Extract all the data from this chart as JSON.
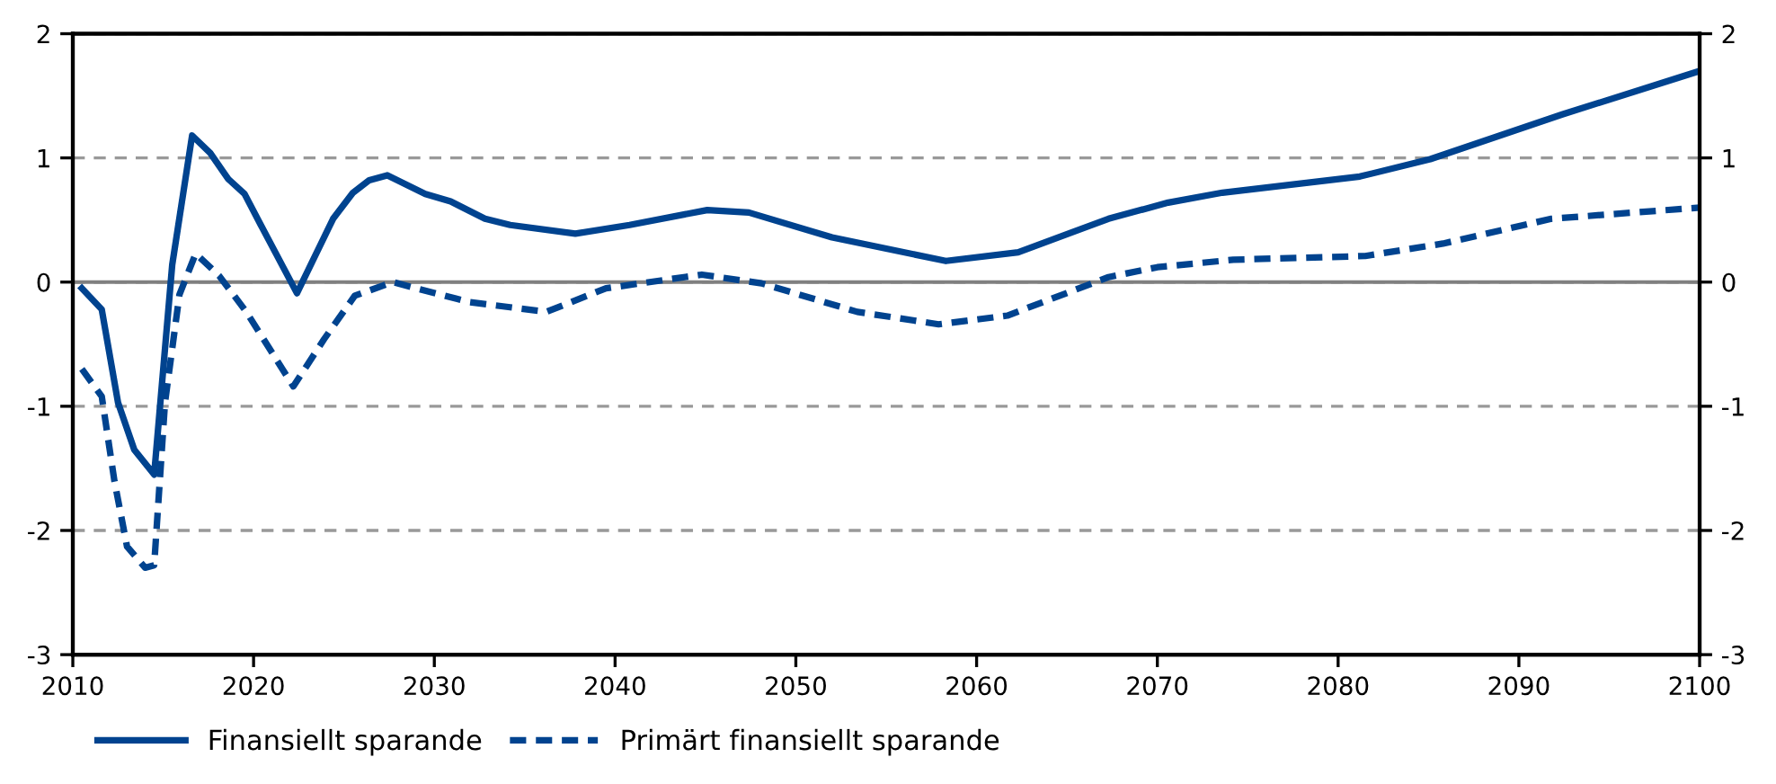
{
  "chart_data": {
    "type": "line",
    "xlim": [
      2010,
      2100
    ],
    "xticks": [
      2010,
      2020,
      2030,
      2040,
      2050,
      2060,
      2070,
      2080,
      2090,
      2100
    ],
    "ylim": [
      -3,
      2
    ],
    "yticks": [
      -3,
      -2,
      -1,
      0,
      1,
      2
    ],
    "y2lim": [
      -3,
      2
    ],
    "y2ticks": [
      -3,
      -2,
      -1,
      0,
      1,
      2
    ],
    "grid": "y",
    "legend": "bottom",
    "ref_lines": [
      {
        "axis": "y",
        "value": 0,
        "color": "#808080",
        "line_style": "solid"
      }
    ],
    "series": [
      {
        "name": "Finansiellt sparande",
        "color": "#00438f",
        "line_style": "solid",
        "x": [
          2010.5,
          2011.6,
          2012.5,
          2013.4,
          2014.5,
          2015.5,
          2016.6,
          2017.6,
          2018.6,
          2019.5,
          2020.4,
          2022.4,
          2024.4,
          2025.5,
          2026.4,
          2027.4,
          2029.5,
          2030.9,
          2032.8,
          2034.2,
          2037.8,
          2040.8,
          2045.1,
          2047.4,
          2052.0,
          2058.3,
          2062.3,
          2067.3,
          2070.6,
          2073.6,
          2081.2,
          2085.1,
          2092.4,
          2100.0
        ],
        "values": [
          -0.05,
          -0.22,
          -0.97,
          -1.35,
          -1.55,
          0.14,
          1.18,
          1.04,
          0.83,
          0.71,
          0.46,
          -0.09,
          0.51,
          0.72,
          0.82,
          0.86,
          0.71,
          0.65,
          0.51,
          0.46,
          0.39,
          0.46,
          0.58,
          0.56,
          0.36,
          0.17,
          0.24,
          0.51,
          0.64,
          0.72,
          0.85,
          0.99,
          1.35,
          1.7
        ]
      },
      {
        "name": "Primärt finansiellt sparande",
        "color": "#00438f",
        "line_style": "dashed",
        "x": [
          2010.5,
          2011.6,
          2012.3,
          2013.0,
          2014.0,
          2014.5,
          2015.1,
          2015.9,
          2016.8,
          2018.1,
          2019.6,
          2022.2,
          2023.9,
          2025.6,
          2027.7,
          2031.9,
          2036.2,
          2039.5,
          2044.8,
          2048.1,
          2053.4,
          2057.9,
          2061.7,
          2067.3,
          2070.0,
          2074.2,
          2081.5,
          2085.8,
          2091.8,
          2100.0
        ],
        "values": [
          -0.7,
          -0.92,
          -1.6,
          -2.13,
          -2.3,
          -2.28,
          -0.97,
          -0.1,
          0.23,
          0.05,
          -0.24,
          -0.84,
          -0.46,
          -0.11,
          0.0,
          -0.16,
          -0.24,
          -0.05,
          0.06,
          -0.01,
          -0.24,
          -0.34,
          -0.27,
          0.04,
          0.12,
          0.18,
          0.21,
          0.31,
          0.51,
          0.6
        ]
      }
    ]
  }
}
